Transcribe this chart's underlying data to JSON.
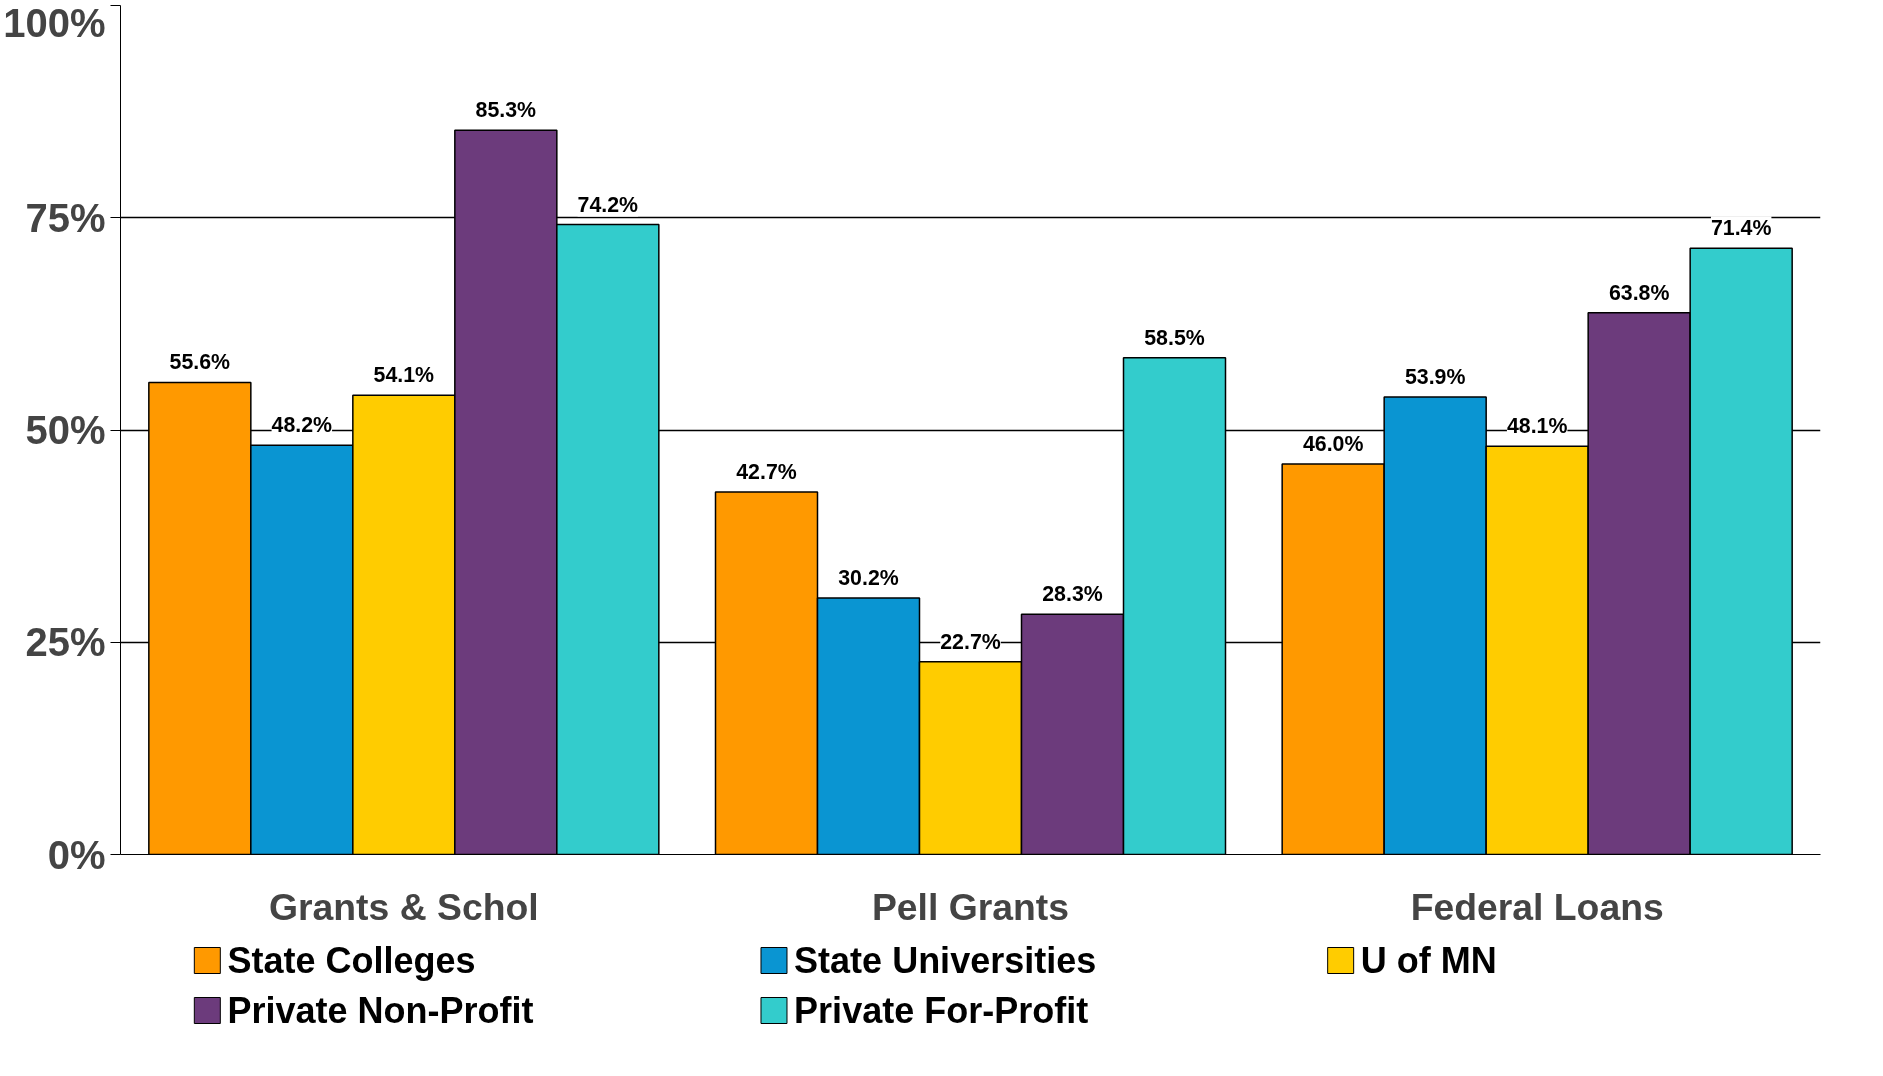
{
  "chart_data": {
    "type": "bar",
    "categories": [
      "Grants & Schol",
      "Pell Grants",
      "Federal Loans"
    ],
    "series": [
      {
        "name": "State Colleges",
        "color": "#ff9900",
        "values": [
          55.6,
          42.7,
          46.0
        ],
        "value_labels": [
          "55.6%",
          "42.7%",
          "46.0%"
        ]
      },
      {
        "name": "State Universities",
        "color": "#0a95d2",
        "values": [
          48.2,
          30.2,
          53.9
        ],
        "value_labels": [
          "48.2%",
          "30.2%",
          "53.9%"
        ]
      },
      {
        "name": "U of MN",
        "color": "#ffcc00",
        "values": [
          54.1,
          22.7,
          48.1
        ],
        "value_labels": [
          "54.1%",
          "22.7%",
          "48.1%"
        ]
      },
      {
        "name": "Private Non-Profit",
        "color": "#6c3b7c",
        "values": [
          85.3,
          28.3,
          63.8
        ],
        "value_labels": [
          "85.3%",
          "28.3%",
          "63.8%"
        ]
      },
      {
        "name": "Private For-Profit",
        "color": "#33cccc",
        "values": [
          74.2,
          58.5,
          71.4
        ],
        "value_labels": [
          "74.2%",
          "58.5%",
          "71.4%"
        ]
      }
    ],
    "ylim": [
      0,
      100
    ],
    "yticks": [
      {
        "value": 0,
        "label": "0%"
      },
      {
        "value": 25,
        "label": "25%"
      },
      {
        "value": 50,
        "label": "50%"
      },
      {
        "value": 75,
        "label": "75%"
      },
      {
        "value": 100,
        "label": "100%"
      }
    ],
    "grid": "y",
    "legend": "bottom"
  }
}
